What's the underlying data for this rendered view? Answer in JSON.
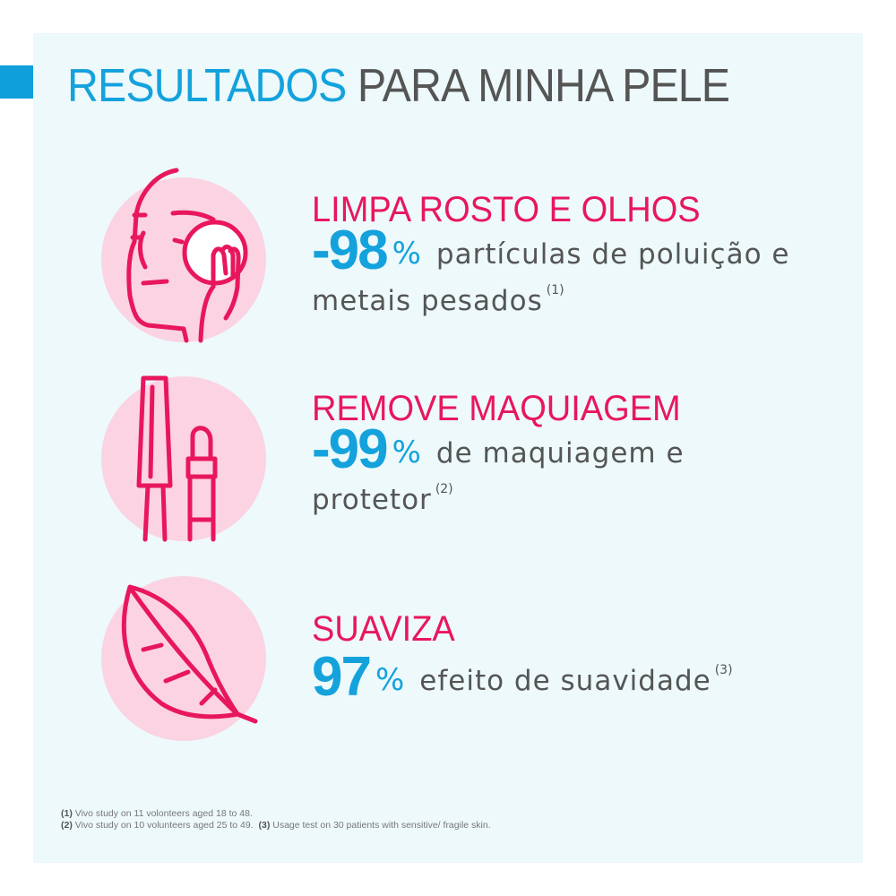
{
  "title": {
    "highlight": "RESULTADOS",
    "rest": "PARA MINHA PELE"
  },
  "colors": {
    "accent_blue": "#14a2dc",
    "accent_pink": "#e8175d",
    "circle_pink": "#fbd3e3",
    "panel": "#edf9fb",
    "text": "#555555"
  },
  "items": [
    {
      "icon": "face-cleansing-pad-icon",
      "heading": "LIMPA ROSTO E OLHOS",
      "value": "-98",
      "unit": "%",
      "text_line1": "partículas de poluição e",
      "text_line2": "metais pesados",
      "note": "(1)"
    },
    {
      "icon": "mascara-lipstick-icon",
      "heading": "REMOVE MAQUIAGEM",
      "value": "-99",
      "unit": "%",
      "text_line1": "de maquiagem e",
      "text_line2": "protetor",
      "note": "(2)"
    },
    {
      "icon": "feather-icon",
      "heading": "SUAVIZA",
      "value": "97",
      "unit": "%",
      "text_line1": "efeito de suavidade",
      "note": "(3)"
    }
  ],
  "footnotes": {
    "n1_mark": "(1)",
    "n1": "Vivo study on 11 volonteers aged 18 to 48.",
    "n2_mark": "(2)",
    "n2": "Vivo study on 10 volunteers aged 25 to 49.",
    "n3_mark": "(3)",
    "n3": "Usage test on 30 patients with sensitive/ fragile skin."
  }
}
